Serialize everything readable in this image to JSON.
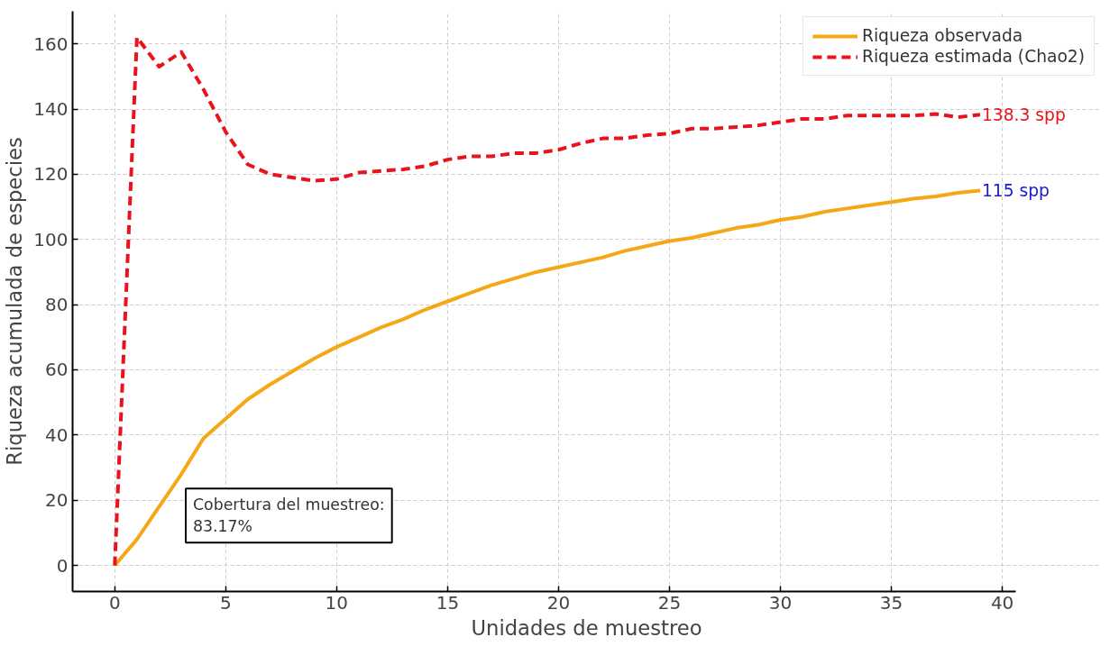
{
  "chart_data": {
    "type": "line",
    "xlabel": "Unidades de muestreo",
    "ylabel": "Riqueza acumulada de especies",
    "x": [
      0,
      1,
      2,
      3,
      4,
      5,
      6,
      7,
      8,
      9,
      10,
      11,
      12,
      13,
      14,
      15,
      16,
      17,
      18,
      19,
      20,
      21,
      22,
      23,
      24,
      25,
      26,
      27,
      28,
      29,
      30,
      31,
      32,
      33,
      34,
      35,
      36,
      37,
      38,
      39
    ],
    "series": [
      {
        "name": "Riqueza observada",
        "color": "#f5a815",
        "line_style": "solid",
        "values": [
          0,
          8,
          18,
          28,
          39,
          45,
          51,
          55.5,
          59.5,
          63.5,
          67,
          70,
          73,
          75.5,
          78.5,
          81,
          83.5,
          86,
          88,
          90,
          91.5,
          93,
          94.5,
          96.5,
          98,
          99.5,
          100.5,
          102,
          103.5,
          104.5,
          106,
          107,
          108.5,
          109.5,
          110.5,
          111.5,
          112.5,
          113.2,
          114.3,
          115
        ]
      },
      {
        "name": "Riqueza estimada (Chao2)",
        "color": "#e8141a",
        "line_style": "dashed",
        "values": [
          0,
          162,
          153,
          157.5,
          146,
          133,
          123,
          120,
          119,
          118,
          118.5,
          120.5,
          121,
          121.5,
          122.5,
          124.5,
          125.5,
          125.5,
          126.5,
          126.5,
          127.5,
          129.5,
          131,
          131,
          132,
          132.5,
          134,
          134,
          134.5,
          135,
          136,
          137,
          137,
          138,
          138,
          138,
          138,
          138.5,
          137.5,
          138.3
        ]
      }
    ],
    "annotations": [
      {
        "text": "138.3 spp",
        "x": 39,
        "y": 138.3
      },
      {
        "text": "115 spp",
        "x": 39,
        "y": 115
      },
      "Cobertura del muestreo:\n83.17%"
    ],
    "xlim": [
      -1.9,
      40.6
    ],
    "ylim": [
      -8,
      170
    ],
    "xticks": [
      0,
      5,
      10,
      15,
      20,
      25,
      30,
      35,
      40
    ],
    "yticks": [
      0,
      20,
      40,
      60,
      80,
      100,
      120,
      140,
      160
    ],
    "grid": true,
    "legend": "top right",
    "marker": "none"
  }
}
